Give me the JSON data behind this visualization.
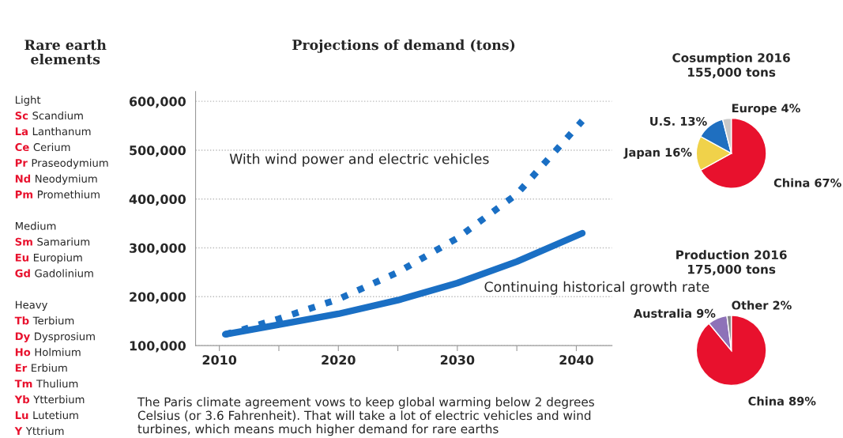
{
  "chart_data": [
    {
      "type": "other",
      "title": "Rare earth elements",
      "annotations": [
        "Light",
        "Sc Scandium",
        "La Lanthanum",
        "Ce Cerium",
        "Pr Praseodymium",
        "Nd Neodymium",
        "Pm Promethium",
        "Medium",
        "Sm Samarium",
        "Eu Europium",
        "Gd Gadolinium",
        "Heavy",
        "Tb Terbium",
        "Dy Dysprosium",
        "Ho Holmium",
        "Er Erbium",
        "Tm Thulium",
        "Yb Ytterbium",
        "Lu Lutetium",
        "Y Yttrium"
      ]
    },
    {
      "type": "line",
      "title": "Projections of demand (tons)",
      "legend": false,
      "grid": "y",
      "xlim": [
        2008,
        2043
      ],
      "xticks": [
        2010,
        {
          "value": 2015,
          "label": null
        },
        2020,
        {
          "value": 2025,
          "label": null
        },
        2030,
        {
          "value": 2035,
          "label": null
        },
        2040
      ],
      "ylim": [
        100000,
        620000
      ],
      "yticks": [
        {
          "value": 100000,
          "label": "100,000"
        },
        {
          "value": 200000,
          "label": "200,000"
        },
        {
          "value": 300000,
          "label": "300,000"
        },
        {
          "value": 400000,
          "label": "400,000"
        },
        {
          "value": 500000,
          "label": "500,000"
        },
        {
          "value": 600000,
          "label": "600,000"
        }
      ],
      "series": [
        {
          "name": "With wind power and electric vehicles",
          "color": "#1a6fc4",
          "line_style": "dotted",
          "x": [
            2010.5,
            2012,
            2015,
            2020,
            2025,
            2030,
            2035,
            2040.5
          ],
          "values": [
            123000,
            133000,
            155000,
            195000,
            250000,
            320000,
            410000,
            560000
          ]
        },
        {
          "name": "Continuing historical growth rate",
          "color": "#1a6fc4",
          "line_style": "solid",
          "x": [
            2010.5,
            2015,
            2020,
            2025,
            2030,
            2035,
            2040.5
          ],
          "values": [
            123000,
            143000,
            165000,
            193000,
            228000,
            272000,
            330000
          ]
        }
      ],
      "annotations": [
        "The Paris climate agreement vows to keep global warming below 2 degrees\nCelsius (or 3.6 Fahrenheit). That will take a lot of electric vehicles and wind\nturbines, which means much higher demand for rare earths"
      ]
    },
    {
      "type": "pie",
      "title": "Cosumption 2016",
      "subtitle": "155,000 tons",
      "categories": [
        "China",
        "Japan",
        "U.S.",
        "Europe"
      ],
      "values": [
        67,
        16,
        13,
        4
      ],
      "value_labels": [
        "67%",
        "16%",
        "13%",
        "4%"
      ],
      "colors": [
        "#e8112d",
        "#f0d24a",
        "#1f6fc0",
        "#c8c8c8"
      ]
    },
    {
      "type": "pie",
      "title": "Production 2016",
      "subtitle": "175,000 tons",
      "categories": [
        "China",
        "Australia",
        "Other"
      ],
      "values": [
        89,
        9,
        2
      ],
      "value_labels": [
        "89%",
        "9%",
        "2%"
      ],
      "colors": [
        "#e8112d",
        "#8e72b8",
        "#888888"
      ]
    }
  ]
}
